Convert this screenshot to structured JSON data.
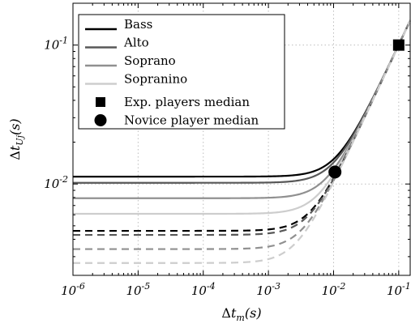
{
  "chart_data": {
    "type": "line",
    "xscale": "log",
    "yscale": "log",
    "xlim": [
      1e-06,
      0.15
    ],
    "ylim": [
      0.0022,
      0.2
    ],
    "x_ticks": [
      {
        "value": 1e-06,
        "base": "10",
        "exp": "-6"
      },
      {
        "value": 1e-05,
        "base": "10",
        "exp": "-5"
      },
      {
        "value": 0.0001,
        "base": "10",
        "exp": "-4"
      },
      {
        "value": 0.001,
        "base": "10",
        "exp": "-3"
      },
      {
        "value": 0.01,
        "base": "10",
        "exp": "-2"
      },
      {
        "value": 0.1,
        "base": "10",
        "exp": "-1"
      }
    ],
    "y_ticks": [
      {
        "value": 0.01,
        "base": "10",
        "exp": "-2"
      },
      {
        "value": 0.1,
        "base": "10",
        "exp": "-1"
      }
    ],
    "grid": true,
    "legend_position": "top-left",
    "xlabel": {
      "delta": "Δ",
      "var": "t",
      "sub": "m",
      "tail": "(s)"
    },
    "ylabel": {
      "delta": "Δ",
      "var": "t",
      "sub": "Uj",
      "tail": "(s)"
    },
    "series": [
      {
        "name": "Bass",
        "color": "#000000",
        "style": "solid",
        "plateau": 0.0113
      },
      {
        "name": "Alto",
        "color": "#585858",
        "style": "solid",
        "plateau": 0.0102
      },
      {
        "name": "Soprano",
        "color": "#909090",
        "style": "solid",
        "plateau": 0.0079
      },
      {
        "name": "Sopranino",
        "color": "#cdcdcd",
        "style": "solid",
        "plateau": 0.0061
      },
      {
        "name": "",
        "color": "#000000",
        "style": "dashed",
        "plateau": 0.0046
      },
      {
        "name": "",
        "color": "#585858",
        "style": "dashed",
        "plateau": 0.0043
      },
      {
        "name": "",
        "color": "#909090",
        "style": "dashed",
        "plateau": 0.0034
      },
      {
        "name": "",
        "color": "#cdcdcd",
        "style": "dashed",
        "plateau": 0.0027
      }
    ],
    "markers": [
      {
        "name": "Exp. players median",
        "shape": "square",
        "x": 0.1,
        "y": 0.1
      },
      {
        "name": "Novice player median",
        "shape": "circle",
        "x": 0.0105,
        "y": 0.0122
      }
    ]
  }
}
